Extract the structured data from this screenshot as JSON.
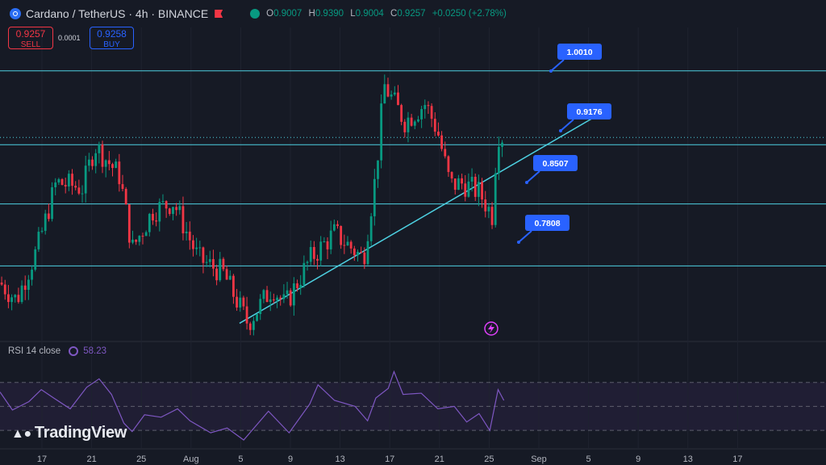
{
  "header": {
    "title": "Cardano / TetherUS · 4h · BINANCE",
    "o_label": "O",
    "o": "0.9007",
    "h_label": "H",
    "h": "0.9390",
    "l_label": "L",
    "l": "0.9004",
    "c_label": "C",
    "c": "0.9257",
    "change": "+0.0250 (+2.78%)"
  },
  "trade": {
    "sell_price": "0.9257",
    "sell_label": "SELL",
    "spread": "0.0001",
    "buy_price": "0.9258",
    "buy_label": "BUY"
  },
  "rsi": {
    "label": "RSI 14 close",
    "value": "58.23"
  },
  "watermark": "TradingView",
  "colors": {
    "up": "#089981",
    "down": "#f23645",
    "line": "#4dd0e1",
    "rsi": "#7e57c2",
    "callout": "#2962ff"
  },
  "chart_data": {
    "type": "candlestick",
    "x_ticks": [
      "17",
      "21",
      "25",
      "Aug",
      "5",
      "9",
      "13",
      "17",
      "21",
      "25",
      "Sep",
      "5",
      "9",
      "13",
      "17"
    ],
    "y_range": [
      0.7,
      1.05
    ],
    "levels": [
      {
        "value": 1.001,
        "label": "1.0010"
      },
      {
        "value": 0.9176,
        "label": "0.9176"
      },
      {
        "value": 0.8507,
        "label": "0.8507"
      },
      {
        "value": 0.7808,
        "label": "0.7808"
      }
    ],
    "trendline": [
      [
        0.0,
        0.716
      ],
      [
        0.667,
        0.956
      ]
    ],
    "path": [
      [
        0.0,
        0.762
      ],
      [
        0.02,
        0.742
      ],
      [
        0.045,
        0.8
      ],
      [
        0.068,
        0.875
      ],
      [
        0.1,
        0.869
      ],
      [
        0.115,
        0.917
      ],
      [
        0.145,
        0.882
      ],
      [
        0.16,
        0.8
      ],
      [
        0.185,
        0.843
      ],
      [
        0.21,
        0.853
      ],
      [
        0.24,
        0.789
      ],
      [
        0.27,
        0.773
      ],
      [
        0.3,
        0.716
      ],
      [
        0.33,
        0.757
      ],
      [
        0.345,
        0.736
      ],
      [
        0.375,
        0.788
      ],
      [
        0.405,
        0.818
      ],
      [
        0.44,
        0.789
      ],
      [
        0.455,
        0.884
      ],
      [
        0.465,
        0.985
      ],
      [
        0.49,
        0.944
      ],
      [
        0.515,
        0.964
      ],
      [
        0.53,
        0.932
      ],
      [
        0.545,
        0.872
      ],
      [
        0.56,
        0.874
      ],
      [
        0.58,
        0.864
      ],
      [
        0.596,
        0.838
      ],
      [
        0.602,
        0.93
      ],
      [
        0.61,
        0.926
      ]
    ],
    "rsi_levels": [
      70,
      50,
      30
    ],
    "rsi_path": [
      [
        0.0,
        62
      ],
      [
        0.015,
        47
      ],
      [
        0.035,
        54
      ],
      [
        0.05,
        64
      ],
      [
        0.065,
        57
      ],
      [
        0.085,
        48
      ],
      [
        0.105,
        66
      ],
      [
        0.12,
        73
      ],
      [
        0.135,
        60
      ],
      [
        0.15,
        36
      ],
      [
        0.16,
        29
      ],
      [
        0.175,
        43
      ],
      [
        0.195,
        41
      ],
      [
        0.215,
        48
      ],
      [
        0.23,
        38
      ],
      [
        0.255,
        28
      ],
      [
        0.275,
        32
      ],
      [
        0.295,
        22
      ],
      [
        0.3,
        26
      ],
      [
        0.325,
        46
      ],
      [
        0.35,
        28
      ],
      [
        0.375,
        52
      ],
      [
        0.385,
        68
      ],
      [
        0.405,
        55
      ],
      [
        0.43,
        50
      ],
      [
        0.445,
        38
      ],
      [
        0.455,
        57
      ],
      [
        0.47,
        65
      ],
      [
        0.477,
        79
      ],
      [
        0.488,
        60
      ],
      [
        0.51,
        61
      ],
      [
        0.53,
        48
      ],
      [
        0.55,
        50
      ],
      [
        0.565,
        37
      ],
      [
        0.58,
        44
      ],
      [
        0.593,
        30
      ],
      [
        0.603,
        64
      ],
      [
        0.61,
        55
      ]
    ]
  }
}
